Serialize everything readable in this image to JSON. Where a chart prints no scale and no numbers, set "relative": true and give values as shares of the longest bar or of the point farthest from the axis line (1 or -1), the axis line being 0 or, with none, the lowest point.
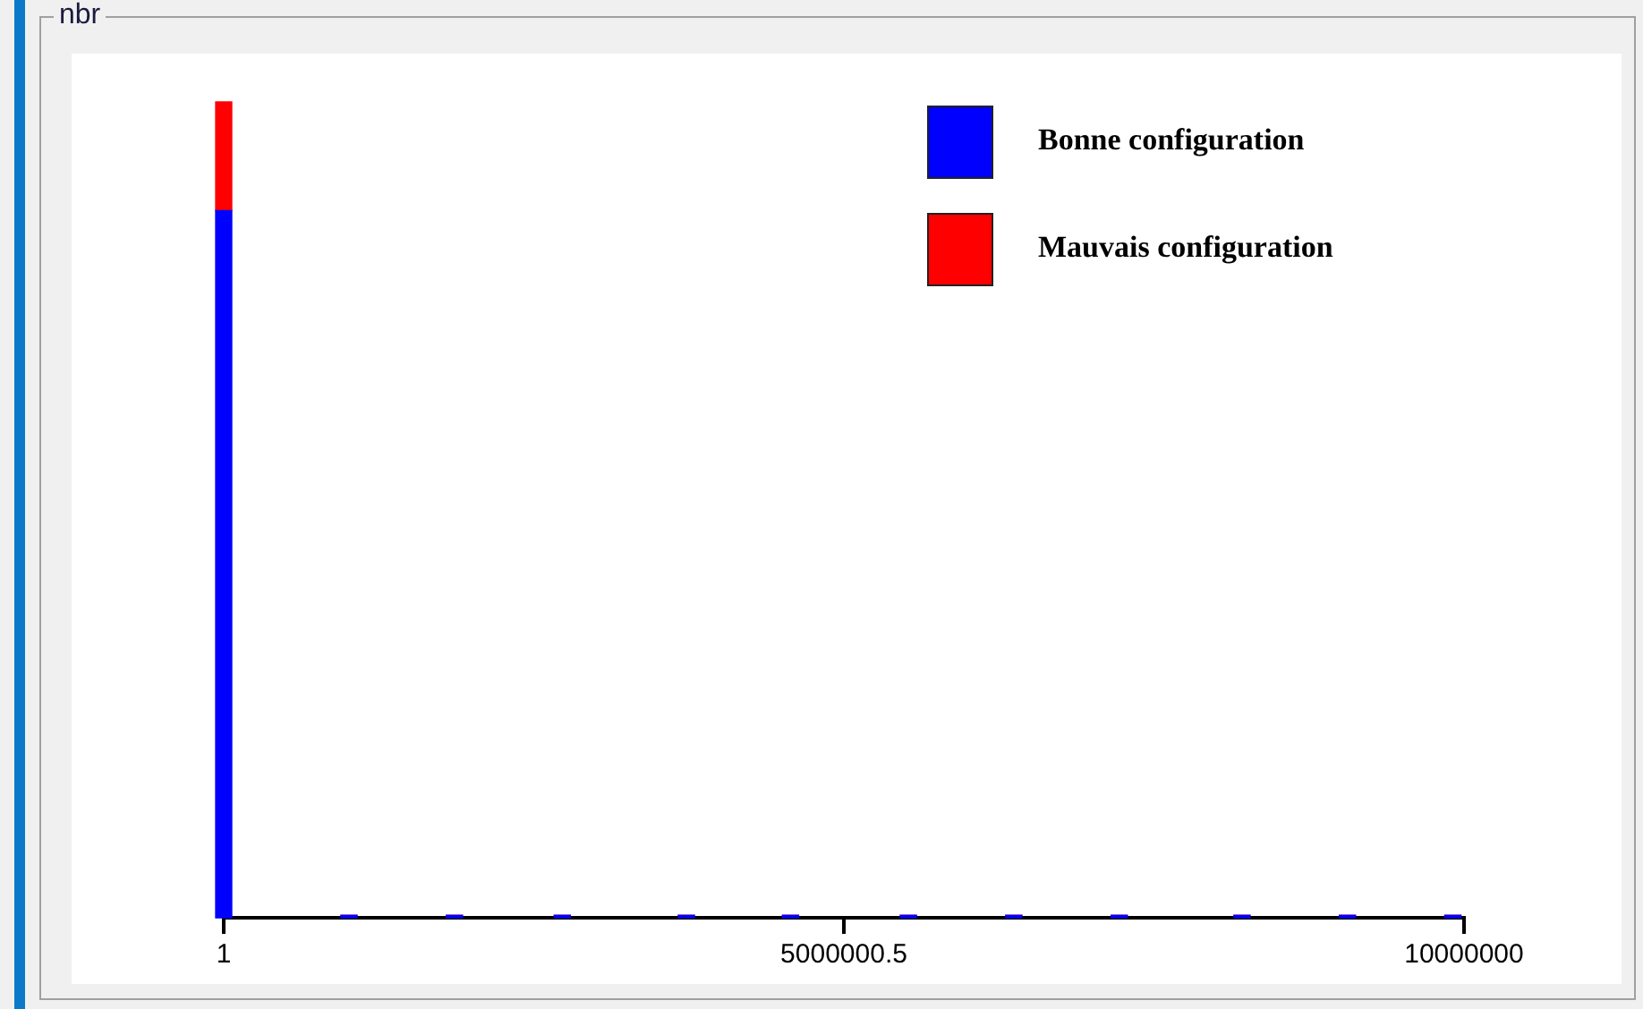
{
  "chart_data": {
    "type": "bar",
    "title": "nbr",
    "relative": true,
    "stacked": true,
    "legend": "top right",
    "x": [
      1,
      1010000,
      1860000,
      2730000,
      3730000,
      4570000,
      5520000,
      6370000,
      7220000,
      8210000,
      9060000,
      9910000
    ],
    "xlim": [
      1,
      10000000
    ],
    "xticks": [
      1,
      5000000.5,
      10000000
    ],
    "series": [
      {
        "name": "Bonne configuration",
        "color": "#0000ff",
        "values": [
          0.867,
          0.003,
          0.003,
          0.003,
          0.003,
          0.003,
          0.003,
          0.003,
          0.003,
          0.003,
          0.003,
          0.003
        ]
      },
      {
        "name": "Mauvais configuration",
        "color": "#ff0000",
        "values": [
          0.133,
          0,
          0,
          0,
          0,
          0,
          0,
          0,
          0,
          0,
          0,
          0
        ]
      }
    ]
  }
}
